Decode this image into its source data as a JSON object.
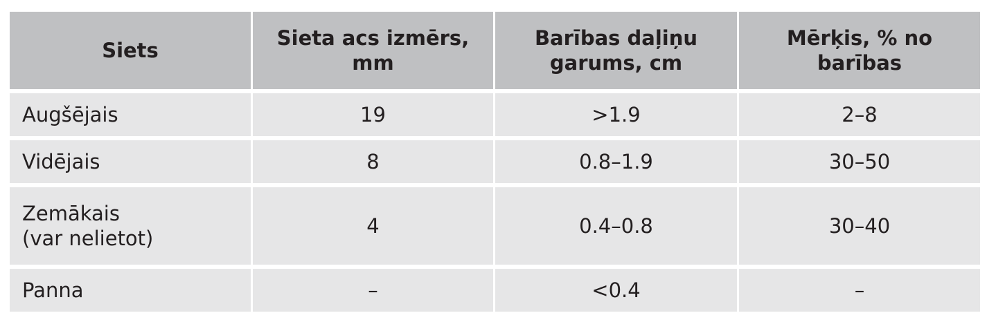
{
  "table": {
    "header": [
      "Siets",
      "Sieta acs izmērs,\nmm",
      "Barības daļiņu\ngarums, cm",
      "Mērķis, % no\nbarības"
    ],
    "rows": [
      [
        "Augšējais",
        "19",
        ">1.9",
        "2–8"
      ],
      [
        "Vidējais",
        "8",
        "0.8–1.9",
        "30–50"
      ],
      [
        "Zemākais\n(var nelietot)",
        "4",
        "0.4–0.8",
        "30–40"
      ],
      [
        "Panna",
        "–",
        "<0.4",
        "–"
      ]
    ]
  }
}
